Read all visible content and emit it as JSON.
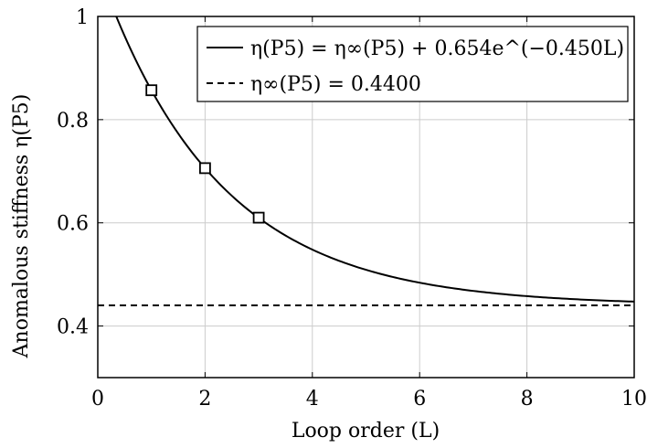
{
  "chart_data": {
    "type": "line",
    "xlabel": "Loop order (L)",
    "ylabel": "Anomalous stiffness η(P5)",
    "xlim": [
      0,
      10
    ],
    "ylim": [
      0.3,
      1.0
    ],
    "x_ticks": [
      0,
      2,
      4,
      6,
      8,
      10
    ],
    "y_ticks": [
      0.4,
      0.6,
      0.8,
      1.0
    ],
    "x_tick_labels": [
      "0",
      "2",
      "4",
      "6",
      "8",
      "10"
    ],
    "y_tick_labels": [
      "0.4",
      "0.6",
      "0.8",
      "1"
    ],
    "grid": true,
    "legend_position": "top-right",
    "series": [
      {
        "name": "η(P5) = η∞(P5) + 0.654e^(−0.450L)",
        "kind": "fit-curve",
        "style": "solid",
        "color": "#000000",
        "asymptote": 0.44,
        "amplitude": 0.654,
        "rate": 0.45
      },
      {
        "name": "η∞(P5) = 0.4400",
        "kind": "horizontal-line",
        "style": "dashed",
        "color": "#000000",
        "value": 0.44
      },
      {
        "kind": "data-points",
        "marker": "square",
        "color": "#000000",
        "points": [
          {
            "x": 1,
            "y": 0.857
          },
          {
            "x": 2,
            "y": 0.706
          },
          {
            "x": 3,
            "y": 0.61
          }
        ]
      }
    ]
  }
}
